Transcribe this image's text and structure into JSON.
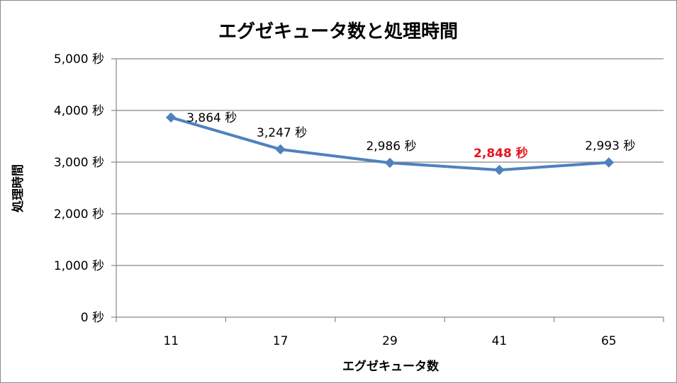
{
  "chart_data": {
    "type": "line",
    "title": "エグゼキュータ数と処理時間",
    "xlabel": "エグゼキュータ数",
    "ylabel": "処理時間",
    "categories": [
      "11",
      "17",
      "29",
      "41",
      "65"
    ],
    "series": [
      {
        "values": [
          3864,
          3247,
          2986,
          2848,
          2993
        ],
        "data_labels": [
          "3,864 秒",
          "3,247 秒",
          "2,986 秒",
          "2,848 秒",
          "2,993 秒"
        ],
        "color": "#4f81bd"
      }
    ],
    "highlight_index": 3,
    "highlight_color": "#e8141c",
    "ylim": [
      0,
      5000
    ],
    "yticks": [
      0,
      1000,
      2000,
      3000,
      4000,
      5000
    ],
    "ytick_labels": [
      "0 秒",
      "1,000 秒",
      "2,000 秒",
      "3,000 秒",
      "4,000 秒",
      "5,000 秒"
    ],
    "grid": true,
    "legend": "none"
  }
}
